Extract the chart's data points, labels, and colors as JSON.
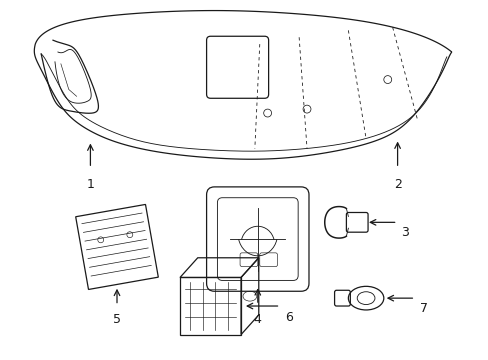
{
  "bg_color": "#ffffff",
  "line_color": "#1a1a1a",
  "lw": 0.9
}
